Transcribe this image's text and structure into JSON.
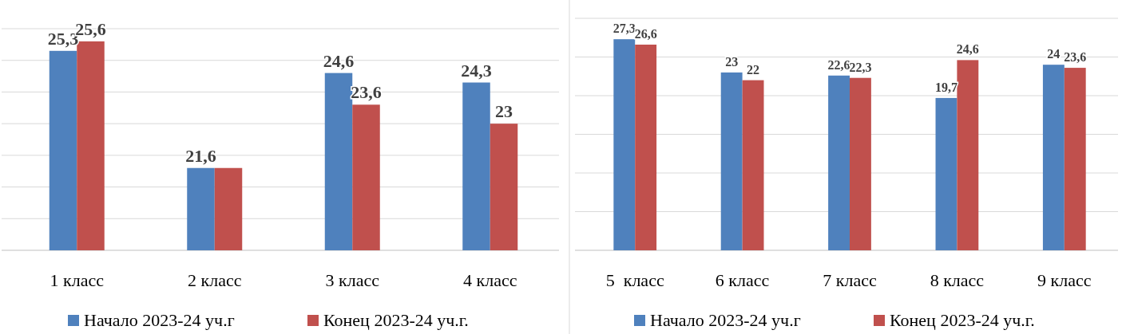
{
  "chart_data": [
    {
      "type": "bar",
      "categories": [
        "1 класс",
        "2 класс",
        "3 класс",
        "4 класс"
      ],
      "series": [
        {
          "name": "Начало 2023-24 уч.г",
          "color": "#4f81bd",
          "values": [
            25.3,
            21.6,
            24.6,
            24.3
          ],
          "value_labels": [
            "25,3",
            "21,6",
            "24,6",
            "24,3"
          ]
        },
        {
          "name": "Конец 2023-24 уч.г.",
          "color": "#c0504d",
          "values": [
            25.6,
            21.6,
            23.6,
            23
          ],
          "value_labels": [
            "25,6",
            null,
            "23,6",
            "23"
          ]
        }
      ],
      "ylim": [
        19,
        26
      ],
      "yticks": [
        {
          "value": 19,
          "label": null
        },
        {
          "value": 20,
          "label": null
        },
        {
          "value": 21,
          "label": null
        },
        {
          "value": 22,
          "label": null
        },
        {
          "value": 23,
          "label": null
        },
        {
          "value": 24,
          "label": null
        },
        {
          "value": 25,
          "label": null
        },
        {
          "value": 26,
          "label": null
        }
      ],
      "grid": "y",
      "legend": "bottom",
      "tick_labels": "x"
    },
    {
      "type": "bar",
      "categories": [
        "5  класс",
        "6 класс",
        "7 класс",
        "8 класс",
        "9 класс"
      ],
      "series": [
        {
          "name": "Начало 2023-24 уч.г",
          "color": "#4f81bd",
          "values": [
            27.3,
            23,
            22.6,
            19.7,
            24
          ],
          "value_labels": [
            "27,3",
            "23",
            "22,6",
            "19,7",
            "24"
          ]
        },
        {
          "name": "Конец 2023-24 уч.г.",
          "color": "#c0504d",
          "values": [
            26.6,
            22,
            22.3,
            24.6,
            23.6
          ],
          "value_labels": [
            "26,6",
            "22",
            "22,3",
            "24,6",
            "23,6"
          ]
        }
      ],
      "ylim": [
        0,
        30
      ],
      "yticks": [
        {
          "value": 0,
          "label": null
        },
        {
          "value": 5,
          "label": null
        },
        {
          "value": 10,
          "label": null
        },
        {
          "value": 15,
          "label": null
        },
        {
          "value": 20,
          "label": null
        },
        {
          "value": 25,
          "label": null
        },
        {
          "value": 30,
          "label": null
        }
      ],
      "grid": "y",
      "legend": "bottom",
      "tick_labels": "x"
    }
  ]
}
